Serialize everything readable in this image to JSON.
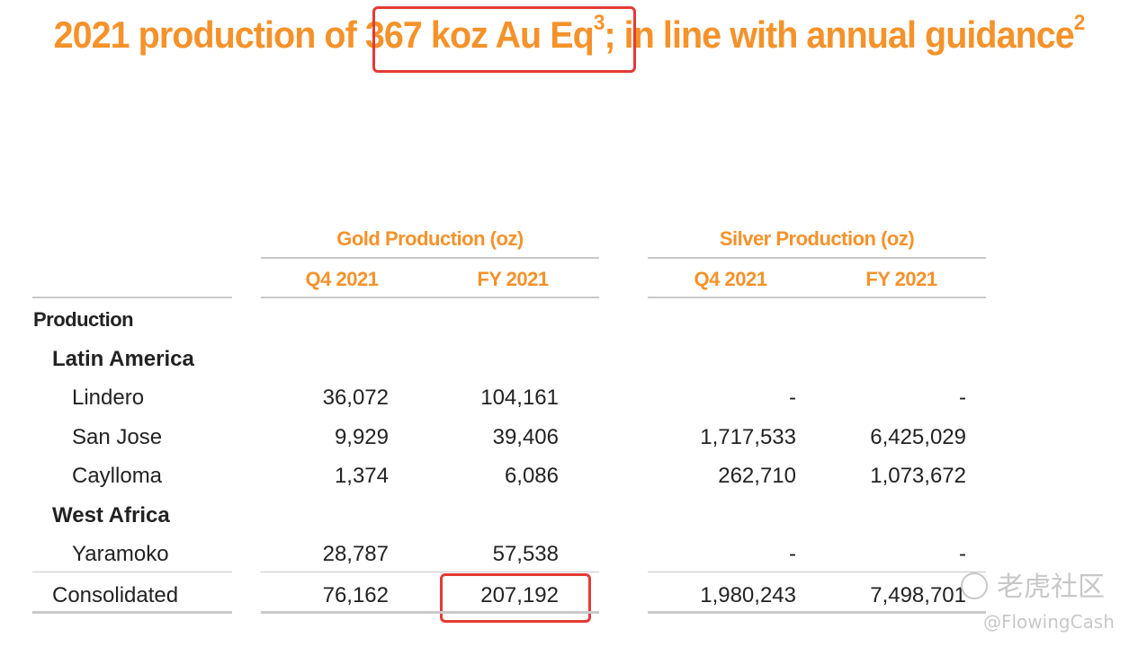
{
  "title": {
    "part1": "2021 production of ",
    "highlight": "367 koz Au Eq",
    "sup1": "3",
    "part2": "; in line with annual guidance",
    "sup2": "2"
  },
  "table": {
    "gold_header": "Gold Production (oz)",
    "silver_header": "Silver Production (oz)",
    "columns": [
      "Q4 2021",
      "FY 2021",
      "Q4 2021",
      "FY 2021"
    ],
    "section": "Production",
    "groups": [
      "Latin America",
      "West Africa"
    ],
    "rows": [
      {
        "name": "Lindero",
        "gold_q4": "36,072",
        "gold_fy": "104,161",
        "silver_q4": "-",
        "silver_fy": "-"
      },
      {
        "name": "San Jose",
        "gold_q4": "9,929",
        "gold_fy": "39,406",
        "silver_q4": "1,717,533",
        "silver_fy": "6,425,029"
      },
      {
        "name": "Caylloma",
        "gold_q4": "1,374",
        "gold_fy": "6,086",
        "silver_q4": "262,710",
        "silver_fy": "1,073,672"
      },
      {
        "name": "Yaramoko",
        "gold_q4": "28,787",
        "gold_fy": "57,538",
        "silver_q4": "-",
        "silver_fy": "-"
      }
    ],
    "total": {
      "name": "Consolidated",
      "gold_q4": "76,162",
      "gold_fy": "207,192",
      "silver_q4": "1,980,243",
      "silver_fy": "7,498,701"
    }
  },
  "watermark": {
    "brand": "老虎社区",
    "handle": "@FlowingCash"
  }
}
